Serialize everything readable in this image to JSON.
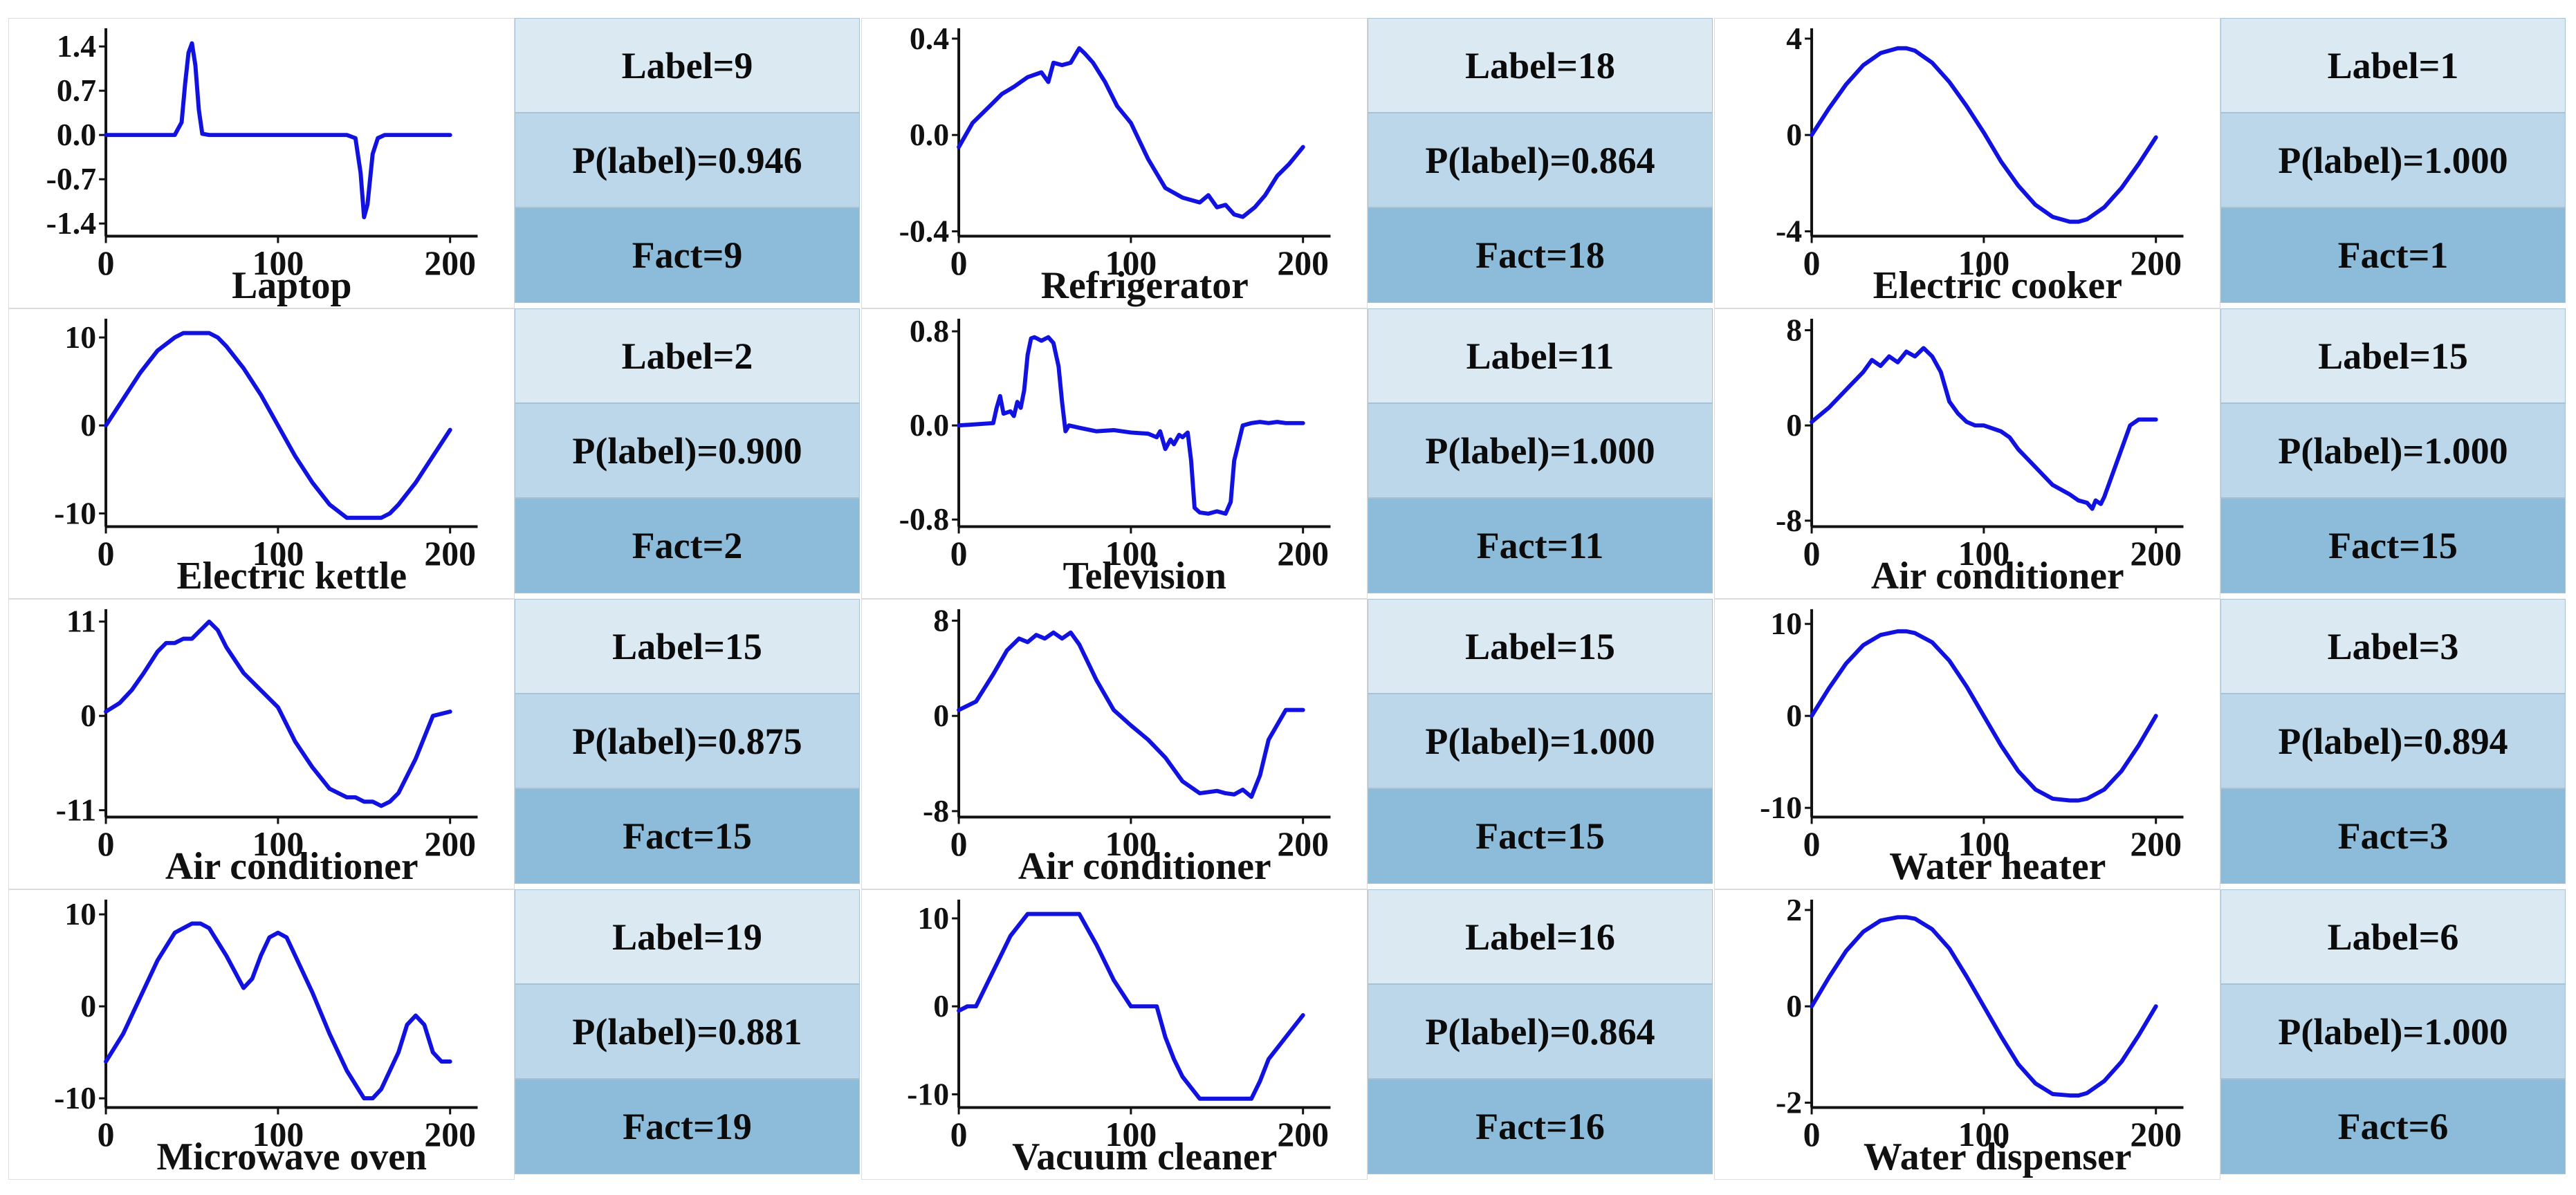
{
  "colors": {
    "line": "#1212e0",
    "axis": "#111111",
    "label_bg": "#dbe9f3",
    "prob_bg": "#bcd7e9",
    "fact_bg": "#8dbcda"
  },
  "chart_data": [
    {
      "type": "line",
      "title": "Laptop",
      "x_ticks": [
        "0",
        "100",
        "200"
      ],
      "xlim": [
        0,
        200
      ],
      "y_ticks": [
        "1.4",
        "0.7",
        "0.0",
        "-0.7",
        "-1.4"
      ],
      "y_tick_values": [
        1.4,
        0.7,
        0,
        -0.7,
        -1.4
      ],
      "ylim": [
        -1.6,
        1.6
      ],
      "x": [
        0,
        40,
        44,
        46,
        48,
        50,
        52,
        54,
        56,
        60,
        100,
        140,
        145,
        148,
        150,
        152,
        155,
        158,
        162,
        200
      ],
      "y": [
        0,
        0,
        0.2,
        0.8,
        1.3,
        1.45,
        1.1,
        0.4,
        0.02,
        0,
        0,
        0,
        -0.05,
        -0.6,
        -1.3,
        -1.1,
        -0.3,
        -0.05,
        0,
        0
      ],
      "label": "Label=9",
      "probability": "P(label)=0.946",
      "fact": "Fact=9"
    },
    {
      "type": "line",
      "title": "Refrigerator",
      "x_ticks": [
        "0",
        "100",
        "200"
      ],
      "xlim": [
        0,
        200
      ],
      "y_ticks": [
        "0.4",
        "0.0",
        "-0.4"
      ],
      "y_tick_values": [
        0.4,
        0,
        -0.4
      ],
      "ylim": [
        -0.42,
        0.42
      ],
      "x": [
        0,
        8,
        18,
        25,
        32,
        40,
        48,
        52,
        55,
        60,
        65,
        70,
        73,
        78,
        85,
        92,
        100,
        110,
        120,
        130,
        135,
        140,
        145,
        150,
        155,
        160,
        165,
        172,
        178,
        185,
        192,
        200
      ],
      "y": [
        -0.05,
        0.05,
        0.12,
        0.17,
        0.2,
        0.24,
        0.26,
        0.22,
        0.3,
        0.29,
        0.3,
        0.36,
        0.34,
        0.3,
        0.22,
        0.12,
        0.05,
        -0.1,
        -0.22,
        -0.26,
        -0.27,
        -0.28,
        -0.25,
        -0.3,
        -0.29,
        -0.33,
        -0.34,
        -0.3,
        -0.25,
        -0.17,
        -0.12,
        -0.05
      ],
      "label": "Label=18",
      "probability": "P(label)=0.864",
      "fact": "Fact=18"
    },
    {
      "type": "line",
      "title": "Electric cooker",
      "x_ticks": [
        "0",
        "100",
        "200"
      ],
      "xlim": [
        0,
        200
      ],
      "y_ticks": [
        "4",
        "0",
        "-4"
      ],
      "y_tick_values": [
        4,
        0,
        -4
      ],
      "ylim": [
        -4.2,
        4.2
      ],
      "x": [
        0,
        10,
        20,
        30,
        40,
        50,
        55,
        60,
        70,
        80,
        90,
        100,
        110,
        120,
        130,
        140,
        150,
        155,
        160,
        170,
        180,
        190,
        200
      ],
      "y": [
        0,
        1.1,
        2.1,
        2.9,
        3.4,
        3.6,
        3.6,
        3.5,
        3.0,
        2.2,
        1.2,
        0.1,
        -1.1,
        -2.1,
        -2.9,
        -3.4,
        -3.6,
        -3.6,
        -3.5,
        -3.0,
        -2.2,
        -1.2,
        -0.1
      ],
      "label": "Label=1",
      "probability": "P(label)=1.000",
      "fact": "Fact=1"
    },
    {
      "type": "line",
      "title": "Electric kettle",
      "x_ticks": [
        "0",
        "100",
        "200"
      ],
      "xlim": [
        0,
        200
      ],
      "y_ticks": [
        "10",
        "0",
        "-10"
      ],
      "y_tick_values": [
        10,
        0,
        -10
      ],
      "ylim": [
        -11.5,
        11.5
      ],
      "x": [
        0,
        10,
        20,
        30,
        40,
        45,
        60,
        65,
        70,
        80,
        90,
        100,
        110,
        120,
        130,
        140,
        160,
        165,
        170,
        180,
        190,
        200
      ],
      "y": [
        0,
        3,
        6,
        8.5,
        10,
        10.5,
        10.5,
        10,
        9,
        6.5,
        3.5,
        0,
        -3.5,
        -6.5,
        -9,
        -10.5,
        -10.5,
        -10,
        -9,
        -6.5,
        -3.5,
        -0.5
      ],
      "label": "Label=2",
      "probability": "P(label)=0.900",
      "fact": "Fact=2"
    },
    {
      "type": "line",
      "title": "Television",
      "x_ticks": [
        "0",
        "100",
        "200"
      ],
      "xlim": [
        0,
        200
      ],
      "y_ticks": [
        "0.8",
        "0.0",
        "-0.8"
      ],
      "y_tick_values": [
        0.8,
        0,
        -0.8
      ],
      "ylim": [
        -0.86,
        0.86
      ],
      "x": [
        0,
        20,
        22,
        24,
        26,
        30,
        32,
        34,
        36,
        38,
        40,
        42,
        44,
        48,
        52,
        55,
        58,
        60,
        62,
        64,
        70,
        80,
        90,
        100,
        110,
        115,
        117,
        120,
        123,
        125,
        128,
        130,
        133,
        135,
        137,
        140,
        145,
        150,
        155,
        158,
        160,
        165,
        170,
        175,
        180,
        185,
        190,
        200
      ],
      "y": [
        0,
        0.02,
        0.15,
        0.25,
        0.1,
        0.12,
        0.08,
        0.2,
        0.15,
        0.3,
        0.6,
        0.74,
        0.75,
        0.72,
        0.75,
        0.7,
        0.5,
        0.2,
        -0.05,
        0,
        -0.02,
        -0.05,
        -0.04,
        -0.06,
        -0.07,
        -0.1,
        -0.05,
        -0.2,
        -0.12,
        -0.16,
        -0.08,
        -0.1,
        -0.06,
        -0.3,
        -0.7,
        -0.74,
        -0.75,
        -0.73,
        -0.75,
        -0.65,
        -0.3,
        0,
        0.02,
        0.03,
        0.02,
        0.03,
        0.02,
        0.02
      ],
      "label": "Label=11",
      "probability": "P(label)=1.000",
      "fact": "Fact=11"
    },
    {
      "type": "line",
      "title": "Air conditioner",
      "x_ticks": [
        "0",
        "100",
        "200"
      ],
      "xlim": [
        0,
        200
      ],
      "y_ticks": [
        "8",
        "0",
        "-8"
      ],
      "y_tick_values": [
        8,
        0,
        -8
      ],
      "ylim": [
        -8.5,
        8.5
      ],
      "x": [
        0,
        10,
        20,
        30,
        35,
        40,
        45,
        50,
        55,
        60,
        65,
        70,
        75,
        80,
        85,
        90,
        95,
        100,
        110,
        115,
        120,
        130,
        140,
        150,
        155,
        160,
        163,
        165,
        168,
        170,
        175,
        180,
        185,
        190,
        200
      ],
      "y": [
        0.3,
        1.5,
        3,
        4.5,
        5.5,
        5,
        5.8,
        5.3,
        6.2,
        5.8,
        6.5,
        5.8,
        4.5,
        2,
        1,
        0.3,
        0,
        0,
        -0.5,
        -1,
        -2,
        -3.5,
        -5,
        -5.8,
        -6.3,
        -6.5,
        -7,
        -6.3,
        -6.6,
        -6,
        -4,
        -2,
        0,
        0.5,
        0.5
      ],
      "label": "Label=15",
      "probability": "P(label)=1.000",
      "fact": "Fact=15"
    },
    {
      "type": "line",
      "title": "Air conditioner",
      "x_ticks": [
        "0",
        "100",
        "200"
      ],
      "xlim": [
        0,
        200
      ],
      "y_ticks": [
        "11",
        "0",
        "-11"
      ],
      "y_tick_values": [
        11,
        0,
        -11
      ],
      "ylim": [
        -11.8,
        11.8
      ],
      "x": [
        0,
        8,
        15,
        22,
        30,
        35,
        40,
        45,
        50,
        55,
        60,
        65,
        70,
        80,
        90,
        100,
        110,
        120,
        130,
        140,
        145,
        150,
        155,
        160,
        165,
        170,
        180,
        190,
        200
      ],
      "y": [
        0.5,
        1.5,
        3,
        5,
        7.5,
        8.5,
        8.5,
        9,
        9,
        10,
        11,
        10,
        8,
        5,
        3,
        1,
        -3,
        -6,
        -8.5,
        -9.5,
        -9.5,
        -10,
        -10,
        -10.5,
        -10,
        -9,
        -5,
        0,
        0.5
      ],
      "label": "Label=15",
      "probability": "P(label)=0.875",
      "fact": "Fact=15"
    },
    {
      "type": "line",
      "title": "Air conditioner",
      "x_ticks": [
        "0",
        "100",
        "200"
      ],
      "xlim": [
        0,
        200
      ],
      "y_ticks": [
        "8",
        "0",
        "-8"
      ],
      "y_tick_values": [
        8,
        0,
        -8
      ],
      "ylim": [
        -8.5,
        8.5
      ],
      "x": [
        0,
        10,
        20,
        28,
        35,
        40,
        45,
        50,
        55,
        60,
        65,
        70,
        80,
        90,
        100,
        110,
        120,
        130,
        140,
        150,
        155,
        160,
        165,
        170,
        175,
        180,
        190,
        200
      ],
      "y": [
        0.5,
        1.2,
        3.5,
        5.5,
        6.5,
        6.2,
        6.8,
        6.5,
        7,
        6.5,
        7,
        6,
        3,
        0.5,
        -0.8,
        -2,
        -3.5,
        -5.5,
        -6.5,
        -6.3,
        -6.5,
        -6.6,
        -6.2,
        -6.8,
        -5,
        -2,
        0.5,
        0.5
      ],
      "label": "Label=15",
      "probability": "P(label)=1.000",
      "fact": "Fact=15"
    },
    {
      "type": "line",
      "title": "Water heater",
      "x_ticks": [
        "0",
        "100",
        "200"
      ],
      "xlim": [
        0,
        200
      ],
      "y_ticks": [
        "10",
        "0",
        "-10"
      ],
      "y_tick_values": [
        10,
        0,
        -10
      ],
      "ylim": [
        -11,
        11
      ],
      "x": [
        0,
        10,
        20,
        30,
        40,
        50,
        55,
        60,
        70,
        80,
        90,
        100,
        110,
        120,
        130,
        140,
        150,
        155,
        160,
        170,
        180,
        190,
        200
      ],
      "y": [
        0,
        3,
        5.7,
        7.7,
        8.8,
        9.2,
        9.2,
        9,
        8,
        6,
        3.2,
        0,
        -3.2,
        -6,
        -8,
        -9,
        -9.2,
        -9.2,
        -9,
        -8,
        -6,
        -3.2,
        0
      ],
      "label": "Label=3",
      "probability": "P(label)=0.894",
      "fact": "Fact=3"
    },
    {
      "type": "line",
      "title": "Microwave oven",
      "x_ticks": [
        "0",
        "100",
        "200"
      ],
      "xlim": [
        0,
        200
      ],
      "y_ticks": [
        "10",
        "0",
        "-10"
      ],
      "y_tick_values": [
        10,
        0,
        -10
      ],
      "ylim": [
        -11,
        11
      ],
      "x": [
        0,
        10,
        20,
        30,
        40,
        50,
        55,
        60,
        70,
        80,
        85,
        90,
        95,
        100,
        105,
        110,
        120,
        130,
        140,
        150,
        155,
        160,
        170,
        175,
        180,
        185,
        190,
        195,
        200
      ],
      "y": [
        -6,
        -3,
        1,
        5,
        8,
        9,
        9,
        8.5,
        5.5,
        2,
        3,
        5.5,
        7.5,
        8,
        7.5,
        5.5,
        1.5,
        -3,
        -7,
        -10,
        -10,
        -9,
        -5,
        -2,
        -1,
        -2,
        -5,
        -6,
        -6
      ],
      "label": "Label=19",
      "probability": "P(label)=0.881",
      "fact": "Fact=19"
    },
    {
      "type": "line",
      "title": "Vacuum cleaner",
      "x_ticks": [
        "0",
        "100",
        "200"
      ],
      "xlim": [
        0,
        200
      ],
      "y_ticks": [
        "10",
        "0",
        "-10"
      ],
      "y_tick_values": [
        10,
        0,
        -10
      ],
      "ylim": [
        -11.5,
        11.5
      ],
      "x": [
        0,
        5,
        10,
        20,
        30,
        40,
        50,
        60,
        70,
        80,
        90,
        100,
        110,
        115,
        120,
        125,
        130,
        140,
        150,
        160,
        170,
        175,
        180,
        190,
        200
      ],
      "y": [
        -0.5,
        0,
        0,
        4,
        8,
        10.5,
        10.5,
        10.5,
        10.5,
        7,
        3,
        0,
        0,
        0,
        -3.5,
        -6,
        -8,
        -10.5,
        -10.5,
        -10.5,
        -10.5,
        -8.5,
        -6,
        -3.5,
        -1
      ],
      "label": "Label=16",
      "probability": "P(label)=0.864",
      "fact": "Fact=16"
    },
    {
      "type": "line",
      "title": "Water dispenser",
      "x_ticks": [
        "0",
        "100",
        "200"
      ],
      "xlim": [
        0,
        200
      ],
      "y_ticks": [
        "2",
        "0",
        "-2"
      ],
      "y_tick_values": [
        2,
        0,
        -2
      ],
      "ylim": [
        -2.1,
        2.1
      ],
      "x": [
        0,
        10,
        20,
        30,
        40,
        50,
        55,
        60,
        70,
        80,
        90,
        100,
        110,
        120,
        130,
        140,
        150,
        155,
        160,
        170,
        180,
        190,
        200
      ],
      "y": [
        0,
        0.6,
        1.15,
        1.55,
        1.78,
        1.85,
        1.85,
        1.82,
        1.6,
        1.2,
        0.62,
        0,
        -0.62,
        -1.2,
        -1.6,
        -1.82,
        -1.85,
        -1.85,
        -1.8,
        -1.55,
        -1.15,
        -0.6,
        0
      ],
      "label": "Label=6",
      "probability": "P(label)=1.000",
      "fact": "Fact=6"
    }
  ]
}
